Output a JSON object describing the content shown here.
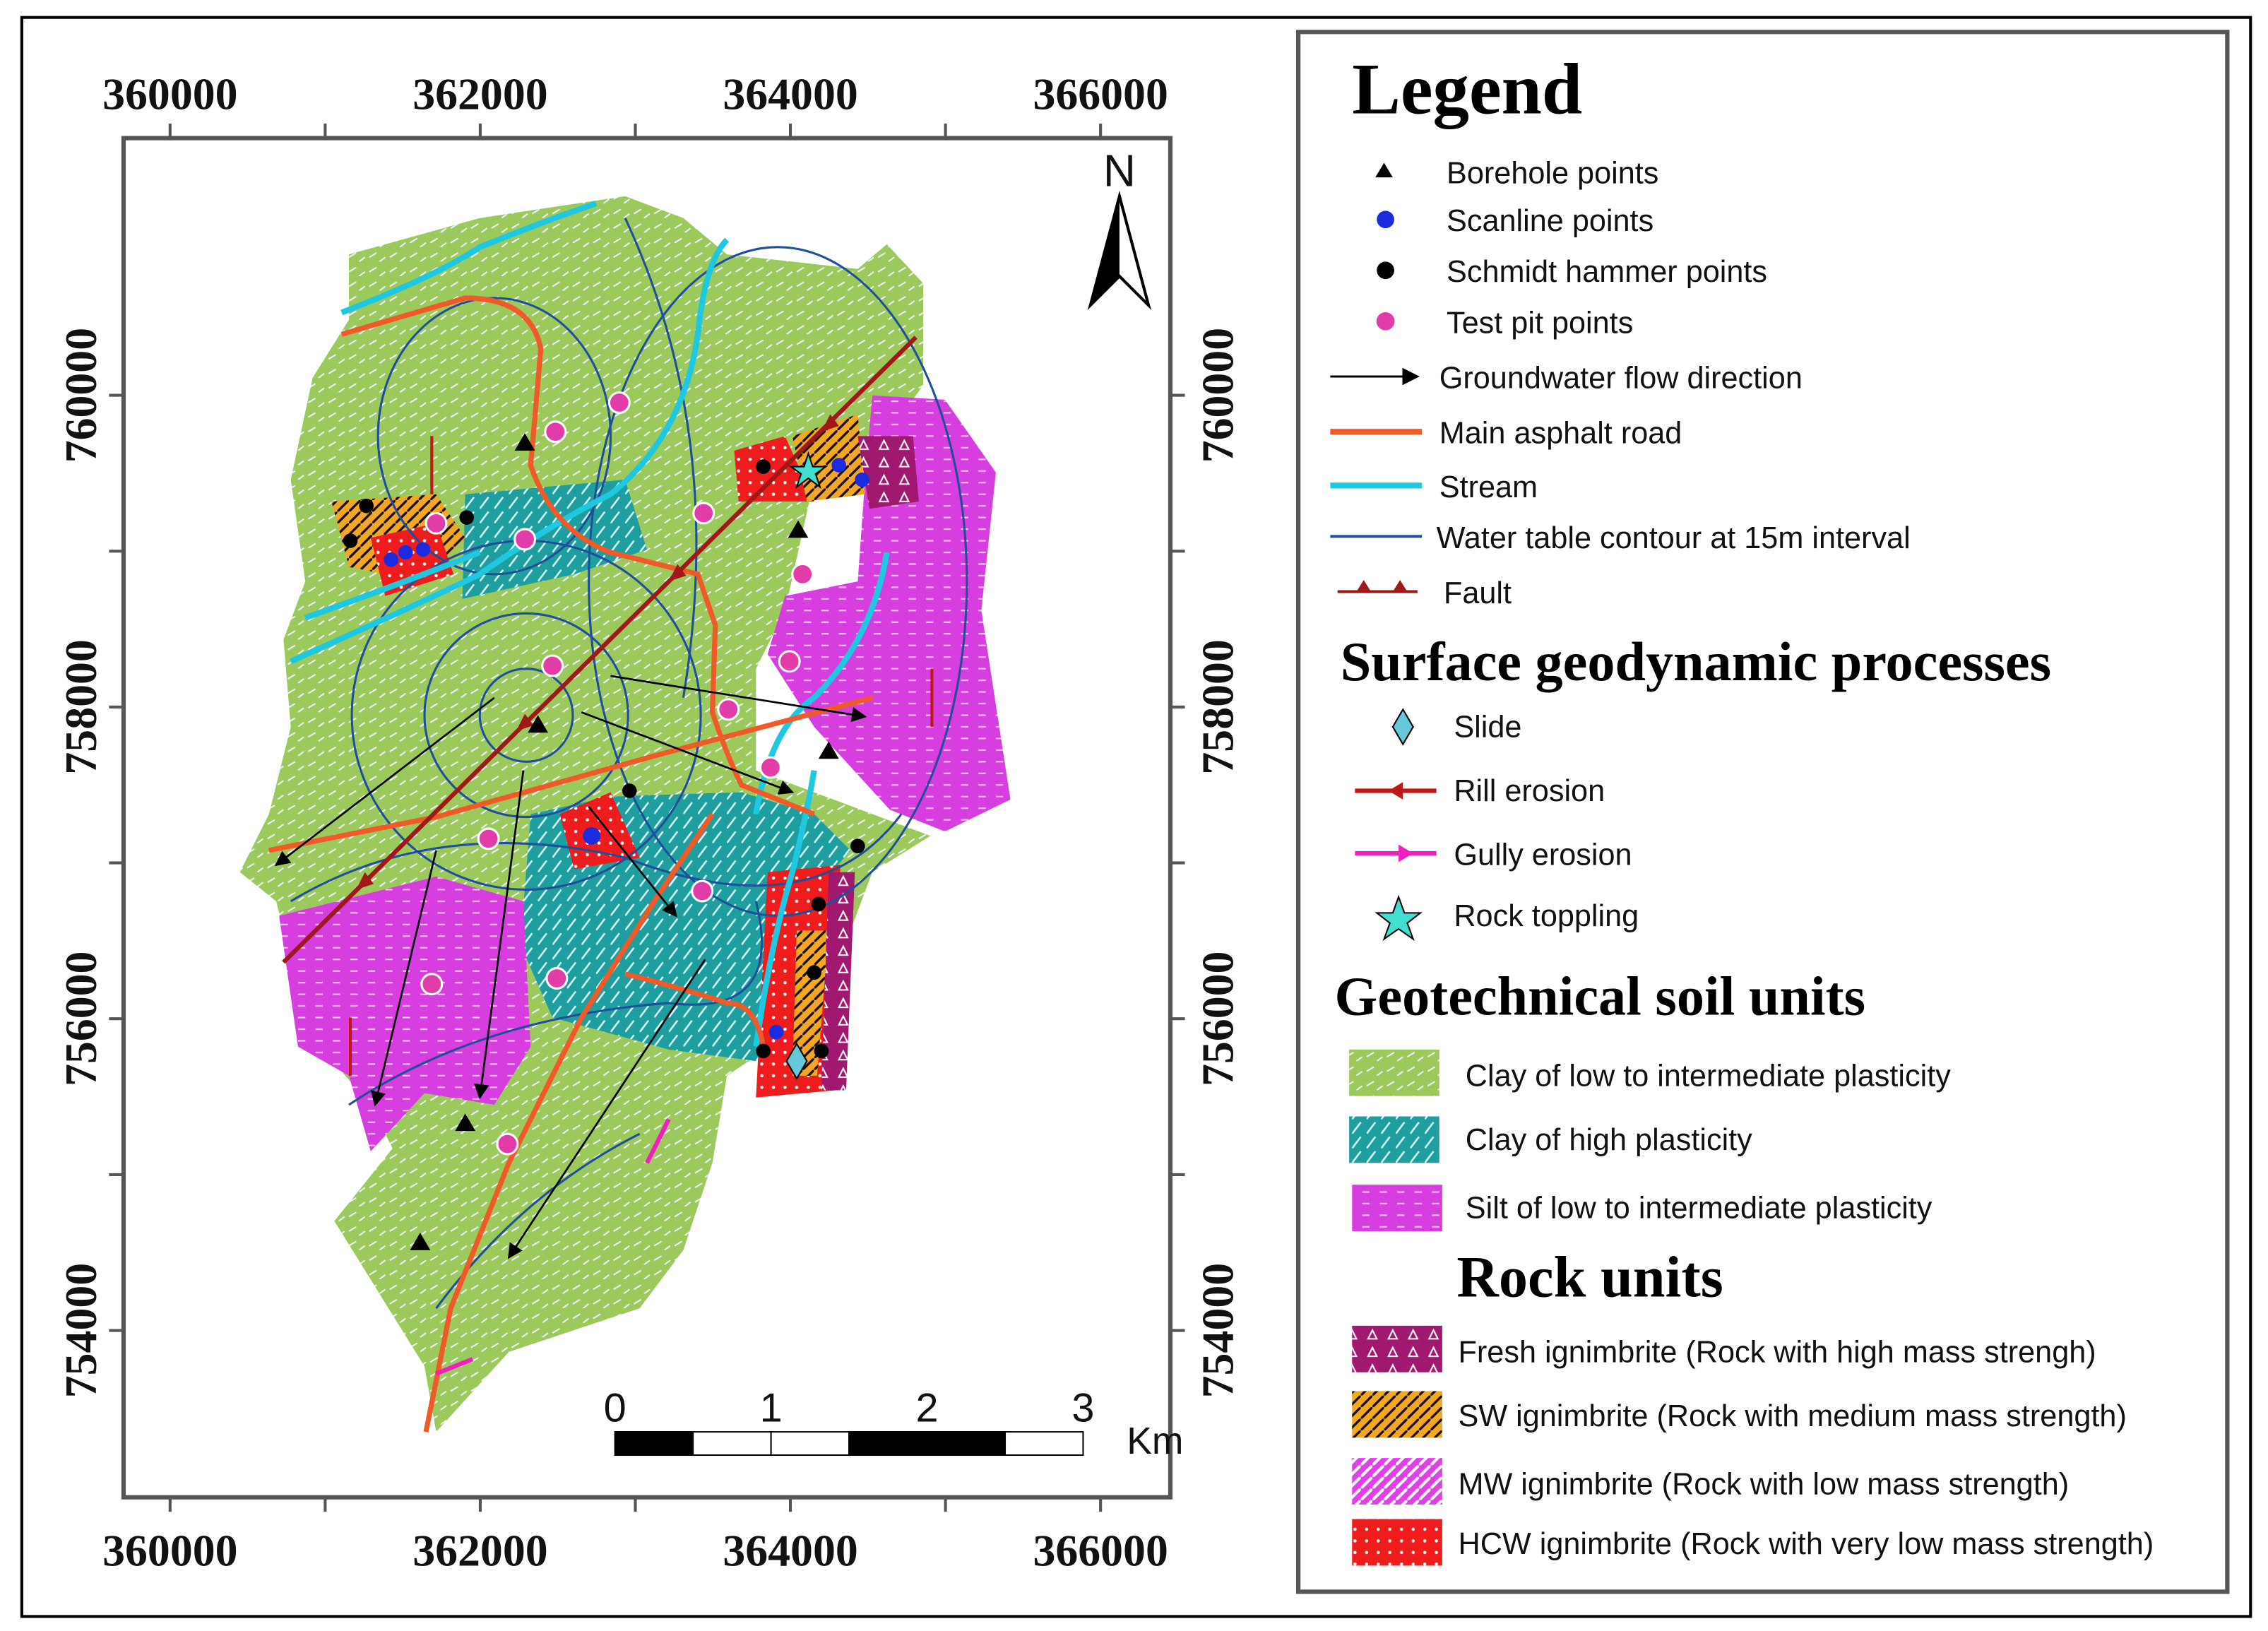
{
  "map": {
    "xlim": [
      359700,
      366450
    ],
    "ylim": [
      752930,
      761650
    ],
    "x_ticks": [
      360000,
      362000,
      364000,
      366000
    ],
    "x_minor_ticks": [
      361000,
      363000,
      365000
    ],
    "y_ticks": [
      760000,
      758000,
      756000,
      754000
    ],
    "y_minor_ticks": [
      759000,
      757000,
      755000
    ],
    "north": "N",
    "scale_bar": {
      "ticks": [
        0,
        1,
        2,
        3
      ],
      "unit": "Km"
    }
  },
  "legend": {
    "title": "Legend",
    "symbols": [
      "Borehole points",
      "Scanline points",
      "Schmidt hammer points",
      "Test pit points",
      "Groundwater flow direction",
      "Main asphalt road",
      "Stream",
      "Water table contour at 15m interval",
      "Fault"
    ],
    "sections": [
      {
        "title": "Surface geodynamic processes",
        "items": [
          "Slide",
          "Rill erosion",
          "Gully erosion",
          "Rock toppling"
        ]
      },
      {
        "title": "Geotechnical soil units",
        "items": [
          "Clay of low to intermediate plasticity",
          "Clay of high plasticity",
          "Silt of low to intermediate plasticity"
        ]
      },
      {
        "title": "Rock units",
        "items": [
          "Fresh ignimbrite (Rock with high mass strengh)",
          "SW ignimbrite (Rock with medium mass strength)",
          "MW ignimbrite (Rock with low mass strength)",
          "HCW ignimbrite (Rock with very low mass strength)"
        ]
      }
    ]
  }
}
